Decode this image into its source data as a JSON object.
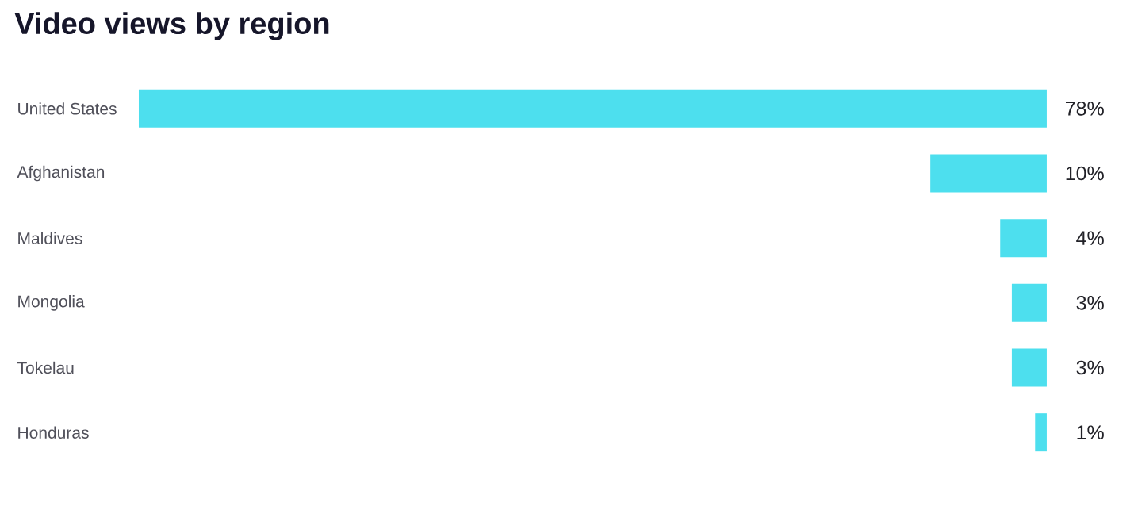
{
  "chart_data": {
    "type": "bar",
    "orientation": "horizontal",
    "title": "Video views by region",
    "categories": [
      "United States",
      "Afghanistan",
      "Maldives",
      "Mongolia",
      "Tokelau",
      "Honduras"
    ],
    "values": [
      78,
      10,
      4,
      3,
      3,
      1
    ],
    "value_labels": [
      "78%",
      "10%",
      "4%",
      "3%",
      "3%",
      "1%"
    ],
    "color": "#4ddfee",
    "xlim": [
      78,
      0
    ]
  }
}
